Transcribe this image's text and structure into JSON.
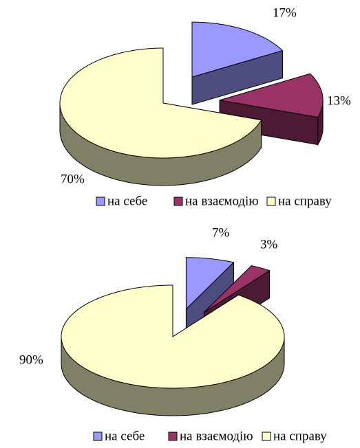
{
  "chart_data": [
    {
      "type": "pie",
      "categories": [
        "на себе",
        "на взаємодію",
        "на справу"
      ],
      "values": [
        17,
        13,
        70
      ],
      "value_labels": [
        "17%",
        "13%",
        "70%"
      ],
      "colors": [
        "#9999ff",
        "#993366",
        "#ffffcc"
      ],
      "legend": "bottom"
    },
    {
      "type": "pie",
      "categories": [
        "на себе",
        "на взаємодію",
        "на справу"
      ],
      "values": [
        7,
        3,
        90
      ],
      "value_labels": [
        "7%",
        "3%",
        "90%"
      ],
      "colors": [
        "#9999ff",
        "#993366",
        "#ffffcc"
      ],
      "legend": "bottom"
    }
  ]
}
